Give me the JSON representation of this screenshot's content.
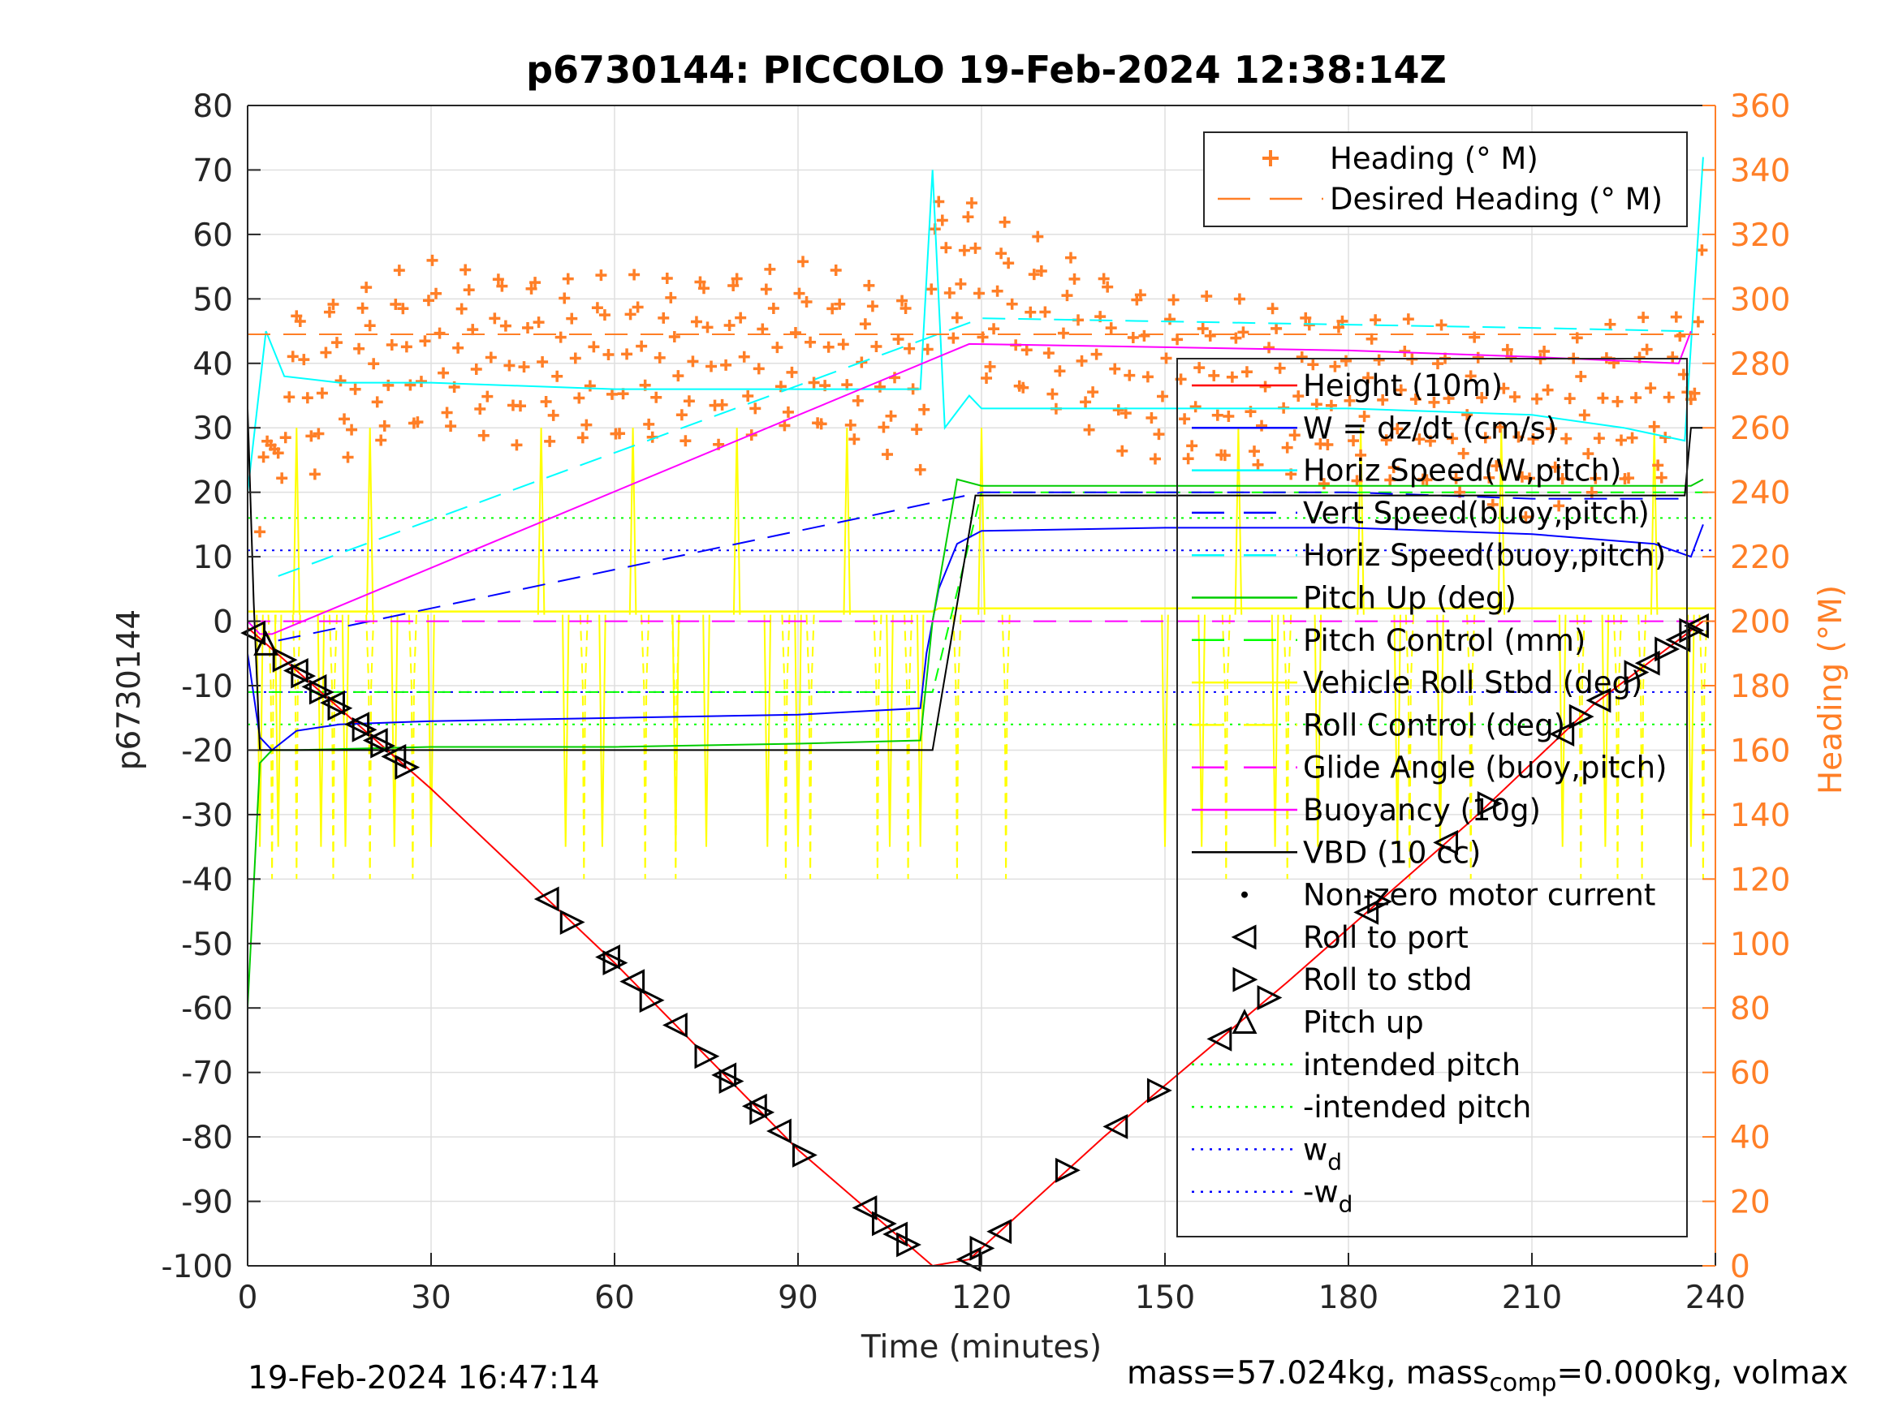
{
  "chart_data": {
    "type": "line",
    "title": "p6730144: PICCOLO 19-Feb-2024 12:38:14Z",
    "xlabel": "Time (minutes)",
    "ylabel": "p6730144",
    "y2label": "Heading (°M)",
    "xlim": [
      0,
      240
    ],
    "ylim": [
      -100,
      80
    ],
    "y2lim": [
      0,
      360
    ],
    "x_ticks": [
      "0",
      "30",
      "60",
      "90",
      "120",
      "150",
      "180",
      "210",
      "240"
    ],
    "y_ticks": [
      "80",
      "70",
      "60",
      "50",
      "40",
      "30",
      "20",
      "10",
      "0",
      "-10",
      "-20",
      "-30",
      "-40",
      "-50",
      "-60",
      "-70",
      "-80",
      "-90",
      "-100"
    ],
    "y2_ticks": [
      "360",
      "340",
      "320",
      "300",
      "280",
      "260",
      "240",
      "220",
      "200",
      "180",
      "160",
      "140",
      "120",
      "100",
      "80",
      "60",
      "40",
      "20",
      "0"
    ],
    "grid": true,
    "legend_heading": [
      {
        "label": "Heading (° M)",
        "color": "#ff7f27",
        "style": "plus"
      },
      {
        "label": "Desired Heading (° M)",
        "color": "#ff7f27",
        "style": "dash"
      }
    ],
    "legend_main": [
      {
        "label": "Height (10m)",
        "color": "#ff0000",
        "style": "solid"
      },
      {
        "label": "W = dz/dt (cm/s)",
        "color": "#0000ff",
        "style": "solid"
      },
      {
        "label": "Horiz Speed(W,pitch)",
        "color": "#00ffff",
        "style": "solid"
      },
      {
        "label": "Vert Speed(buoy,pitch)",
        "color": "#0000ff",
        "style": "dash"
      },
      {
        "label": "Horiz Speed(buoy,pitch)",
        "color": "#00ffff",
        "style": "dash"
      },
      {
        "label": "Pitch Up (deg)",
        "color": "#00cc00",
        "style": "solid"
      },
      {
        "label": "Pitch Control (mm)",
        "color": "#00ff00",
        "style": "dash"
      },
      {
        "label": "Vehicle Roll Stbd (deg)",
        "color": "#ffff00",
        "style": "solid"
      },
      {
        "label": "Roll Control (deg)",
        "color": "#ffff00",
        "style": "dash"
      },
      {
        "label": "Glide Angle (buoy,pitch)",
        "color": "#ff00ff",
        "style": "dash"
      },
      {
        "label": "Buoyancy (10g)",
        "color": "#ff00ff",
        "style": "solid"
      },
      {
        "label": "VBD (10 cc)",
        "color": "#000000",
        "style": "solid"
      },
      {
        "label": "Non-zero motor current",
        "color": "#000000",
        "style": "dot"
      },
      {
        "label": "Roll to port",
        "color": "#000000",
        "style": "tri-left"
      },
      {
        "label": "Roll to stbd",
        "color": "#000000",
        "style": "tri-right"
      },
      {
        "label": "Pitch up",
        "color": "#000000",
        "style": "tri-up"
      },
      {
        "label": "intended pitch",
        "color": "#00ff00",
        "style": "dot"
      },
      {
        "label": "-intended pitch",
        "color": "#00ff00",
        "style": "dot"
      },
      {
        "label": "w",
        "sub": "d",
        "color": "#0000ff",
        "style": "dot"
      },
      {
        "label": "-w",
        "sub": "d",
        "color": "#0000ff",
        "style": "dot"
      }
    ],
    "series": [
      {
        "name": "Height (10m)",
        "axis": "left",
        "color": "#ff0000",
        "x": [
          0,
          30,
          60,
          90,
          112,
          118,
          140,
          170,
          200,
          220,
          238
        ],
        "y": [
          -1,
          -26,
          -53,
          -82,
          -100,
          -99,
          -80,
          -56,
          -31,
          -13,
          0
        ]
      },
      {
        "name": "W = dz/dt (cm/s)",
        "axis": "left",
        "color": "#0000ff",
        "x": [
          0,
          2,
          4,
          8,
          15,
          30,
          60,
          90,
          110,
          111,
          113,
          116,
          120,
          150,
          180,
          210,
          230,
          236,
          238
        ],
        "y": [
          -5,
          -18,
          -20,
          -17,
          -16,
          -15.5,
          -15,
          -14.5,
          -13.5,
          -5,
          5,
          12,
          14,
          14.5,
          14.5,
          13.5,
          12,
          10,
          15
        ]
      },
      {
        "name": "Horiz Speed(W,pitch)",
        "axis": "left",
        "color": "#00ffff",
        "x": [
          0,
          3,
          6,
          15,
          30,
          60,
          90,
          110,
          112,
          114,
          118,
          120,
          150,
          180,
          210,
          225,
          235,
          238
        ],
        "y": [
          20,
          45,
          38,
          37,
          37,
          36,
          36,
          36,
          70,
          30,
          35,
          33,
          33,
          33,
          32,
          30,
          28,
          72
        ]
      },
      {
        "name": "Vert Speed(buoy,pitch)",
        "axis": "left",
        "color": "#0000ff",
        "x": [
          5,
          120,
          150,
          180,
          210,
          235
        ],
        "y": [
          -3,
          20,
          20,
          20,
          19,
          19
        ]
      },
      {
        "name": "Horiz Speed(buoy,pitch)",
        "axis": "left",
        "color": "#00ffff",
        "x": [
          5,
          120,
          150,
          180,
          210,
          235
        ],
        "y": [
          7,
          47,
          46.5,
          46,
          45.5,
          45
        ]
      },
      {
        "name": "Pitch Up (deg)",
        "axis": "left",
        "color": "#00cc00",
        "x": [
          0,
          2,
          4,
          8,
          30,
          60,
          90,
          110,
          112,
          116,
          120,
          150,
          180,
          210,
          236,
          238
        ],
        "y": [
          -60,
          -22,
          -20,
          -20,
          -19.5,
          -19.5,
          -19,
          -18.5,
          0,
          22,
          21,
          21,
          21,
          21,
          21,
          22
        ]
      },
      {
        "name": "Glide Angle (buoy,pitch)",
        "axis": "left",
        "color": "#ff00ff",
        "x": [
          0,
          240
        ],
        "y": [
          0,
          0
        ]
      },
      {
        "name": "Buoyancy (10g)",
        "axis": "left",
        "color": "#ff00ff",
        "x": [
          0,
          2,
          4,
          118,
          150,
          180,
          210,
          234,
          236
        ],
        "y": [
          0,
          -2,
          -2,
          43,
          42.5,
          42,
          41,
          40,
          45
        ]
      },
      {
        "name": "VBD (10 cc)",
        "axis": "left",
        "color": "#000000",
        "x": [
          0,
          1,
          2,
          4,
          112,
          119,
          235,
          236,
          238
        ],
        "y": [
          33,
          3,
          -20,
          -20,
          -20,
          19.5,
          19.5,
          30,
          30
        ]
      },
      {
        "name": "Desired Heading (° M)",
        "axis": "right",
        "color": "#ff7f27",
        "x": [
          0,
          240
        ],
        "y": [
          289,
          289
        ]
      },
      {
        "name": "intended pitch",
        "axis": "left",
        "color": "#00ff00",
        "x": [
          0,
          240
        ],
        "y": [
          16,
          16
        ]
      },
      {
        "name": "-intended pitch",
        "axis": "left",
        "color": "#00ff00",
        "x": [
          0,
          240
        ],
        "y": [
          -16,
          -16
        ]
      },
      {
        "name": "w",
        "axis": "left",
        "color": "#0000ff",
        "x": [
          0,
          240
        ],
        "y": [
          11,
          11
        ]
      },
      {
        "name": "-w",
        "axis": "left",
        "color": "#0000ff",
        "x": [
          0,
          240
        ],
        "y": [
          -11,
          -11
        ]
      }
    ],
    "pitch_control_levels": {
      "x": [
        0,
        112,
        120,
        240
      ],
      "y": [
        -11,
        -11,
        20,
        20
      ]
    },
    "heading_trace": {
      "x_start": 2,
      "x_end": 238,
      "x_step": 0.6,
      "base": [
        [
          2,
          215
        ],
        [
          5,
          270
        ],
        [
          30,
          285
        ],
        [
          60,
          280
        ],
        [
          90,
          285
        ],
        [
          110,
          275
        ],
        [
          114,
          318
        ],
        [
          120,
          300
        ],
        [
          150,
          275
        ],
        [
          180,
          270
        ],
        [
          210,
          260
        ],
        [
          235,
          270
        ],
        [
          238,
          320
        ]
      ],
      "swing_period_min": 5.5,
      "swing_amplitude": 28
    },
    "roll_spikes_x": [
      2,
      5,
      8,
      12,
      16,
      20,
      24,
      30,
      48,
      52,
      58,
      63,
      70,
      75,
      80,
      85,
      90,
      98,
      105,
      110,
      120,
      150,
      156,
      162,
      168,
      175,
      182,
      188,
      195,
      205,
      215,
      222,
      230,
      236
    ],
    "roll_control_spikes_x": [
      4,
      8,
      14,
      20,
      27,
      55,
      65,
      70,
      88,
      92,
      103,
      108,
      116,
      124,
      160,
      170,
      190,
      200,
      218,
      224,
      228,
      238
    ],
    "markers": {
      "x": [
        1,
        3,
        6,
        8,
        9,
        11,
        12,
        14,
        15,
        18,
        19,
        21,
        22,
        24,
        26,
        49,
        53,
        59,
        60,
        63,
        66,
        70,
        75,
        78,
        79,
        83,
        84,
        87,
        91,
        101,
        104,
        106,
        108,
        118,
        120,
        123,
        134,
        142,
        149,
        159,
        167,
        183,
        185,
        196,
        203,
        215,
        218,
        221,
        227,
        229,
        232,
        234,
        236,
        237
      ],
      "type": [
        "tl",
        "tu",
        "tr",
        "tl",
        "tr",
        "tl",
        "tr",
        "tl",
        "tr",
        "tl",
        "tr",
        "tl",
        "tr",
        "tl",
        "tr",
        "tl",
        "tr",
        "tl",
        "tr",
        "tl",
        "tr",
        "tl",
        "tr",
        "tl",
        "tr",
        "tl",
        "tr",
        "tl",
        "tr",
        "tl",
        "tr",
        "tl",
        "tr",
        "tl",
        "tr",
        "tl",
        "tr",
        "tl",
        "tr",
        "tl",
        "tr",
        "tl",
        "tr",
        "tl",
        "tr",
        "tl",
        "tr",
        "tl",
        "tr",
        "tl",
        "tr",
        "tl",
        "tr",
        "tl"
      ]
    },
    "footer_left": "19-Feb-2024 16:47:14",
    "footer_right_main": "mass=57.024kg, mass",
    "footer_right_sub": "comp",
    "footer_right_tail": "=0.000kg, volmax"
  }
}
